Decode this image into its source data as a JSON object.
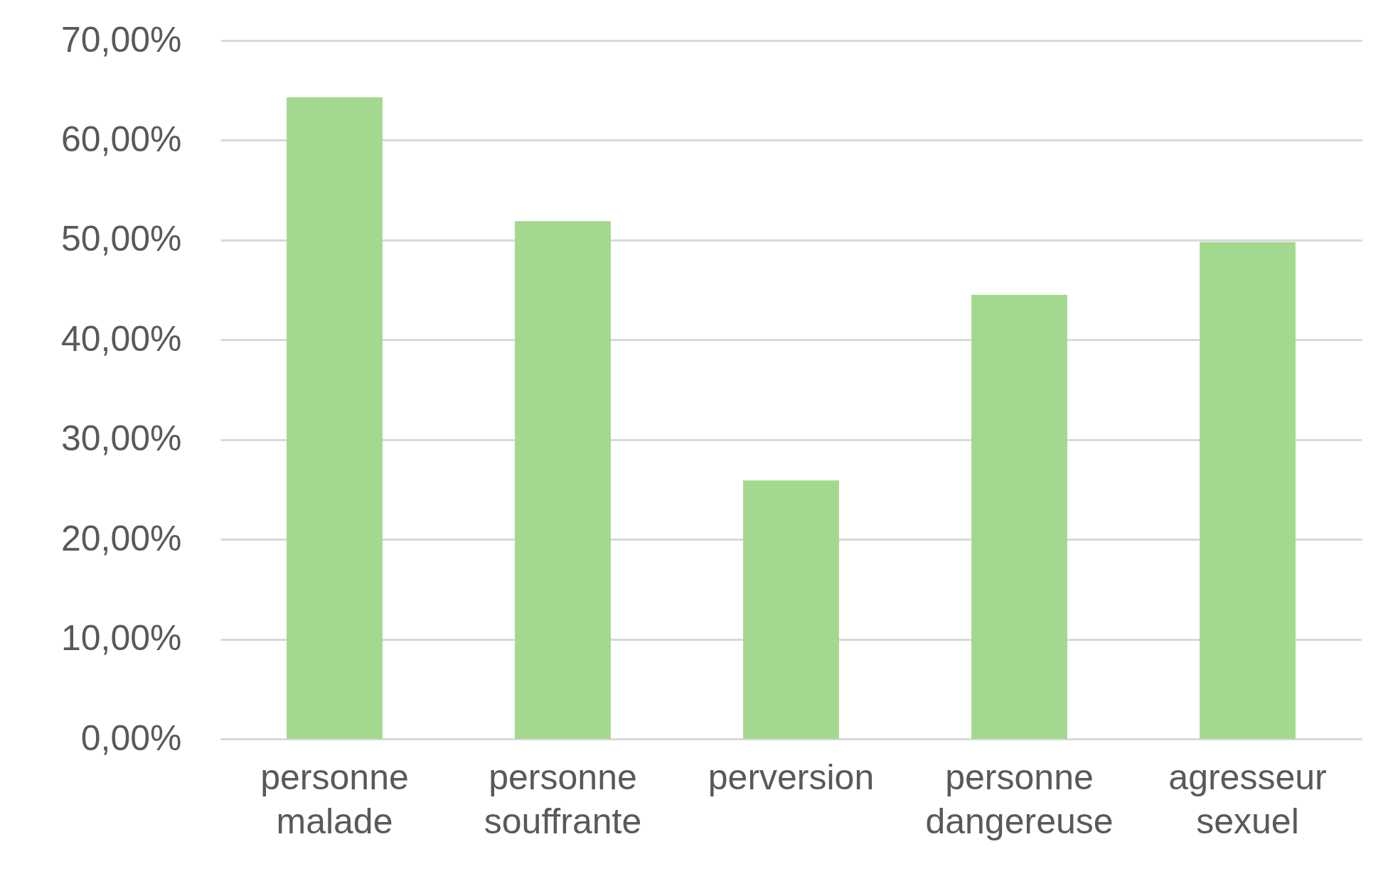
{
  "chart_data": {
    "type": "bar",
    "categories": [
      "personne malade",
      "personne souffrante",
      "perversion",
      "personne dangereuse",
      "agresseur sexuel"
    ],
    "values": [
      64.3,
      51.9,
      25.9,
      44.5,
      49.8
    ],
    "color": "#a2d98e",
    "ylim": [
      0,
      70
    ],
    "yticks": [
      {
        "value": 0,
        "label": "0,00%"
      },
      {
        "value": 10,
        "label": "10,00%"
      },
      {
        "value": 20,
        "label": "20,00%"
      },
      {
        "value": 30,
        "label": "30,00%"
      },
      {
        "value": 40,
        "label": "40,00%"
      },
      {
        "value": 50,
        "label": "50,00%"
      },
      {
        "value": 60,
        "label": "60,00%"
      },
      {
        "value": 70,
        "label": "70,00%"
      }
    ],
    "grid": "y"
  }
}
